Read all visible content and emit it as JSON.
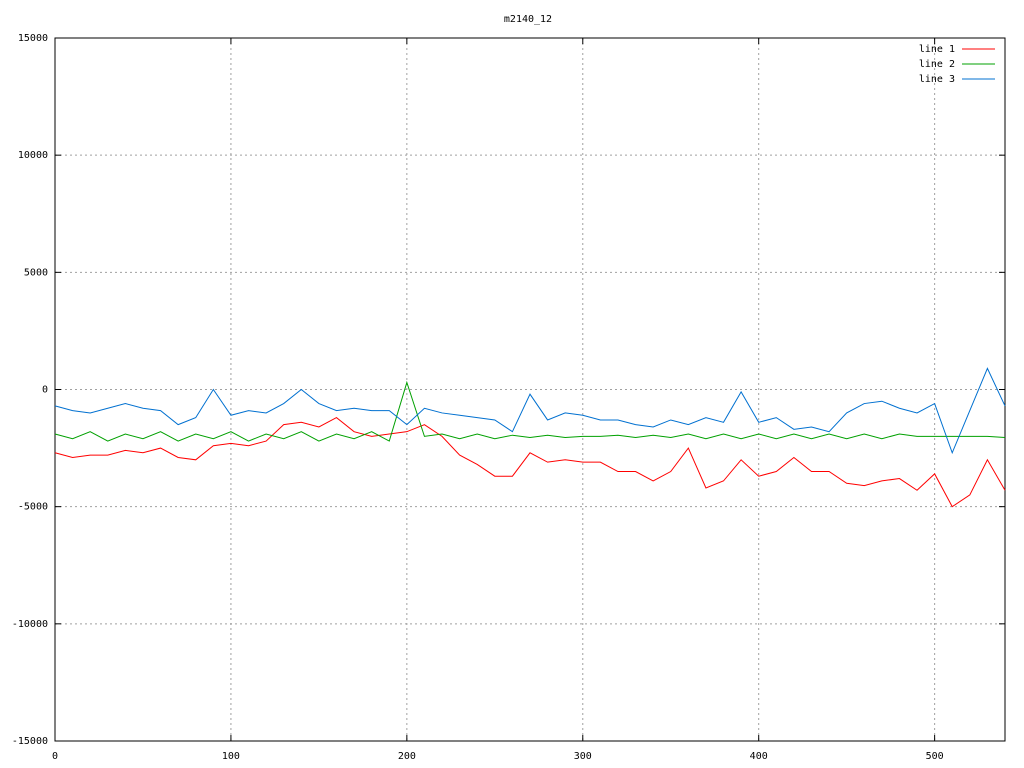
{
  "chart_data": {
    "type": "line",
    "title": "m2140_12",
    "x": [
      0,
      10,
      20,
      30,
      40,
      50,
      60,
      70,
      80,
      90,
      100,
      110,
      120,
      130,
      140,
      150,
      160,
      170,
      180,
      190,
      200,
      210,
      220,
      230,
      240,
      250,
      260,
      270,
      280,
      290,
      300,
      310,
      320,
      330,
      340,
      350,
      360,
      370,
      380,
      390,
      400,
      410,
      420,
      430,
      440,
      450,
      460,
      470,
      480,
      490,
      500,
      510,
      520,
      530,
      540
    ],
    "series": [
      {
        "name": "line 1",
        "color": "#ff0000",
        "values": [
          -2700,
          -2900,
          -2800,
          -2800,
          -2600,
          -2700,
          -2500,
          -2900,
          -3000,
          -2400,
          -2300,
          -2400,
          -2200,
          -1500,
          -1400,
          -1600,
          -1200,
          -1800,
          -2000,
          -1900,
          -1800,
          -1500,
          -2000,
          -2800,
          -3200,
          -3700,
          -3700,
          -2700,
          -3100,
          -3000,
          -3100,
          -3100,
          -3500,
          -3500,
          -3900,
          -3500,
          -2500,
          -4200,
          -3900,
          -3000,
          -3700,
          -3500,
          -2900,
          -3500,
          -3500,
          -4000,
          -4100,
          -3900,
          -3800,
          -4300,
          -3600,
          -5000,
          -4500,
          -3000,
          -4300
        ]
      },
      {
        "name": "line 2",
        "color": "#00a000",
        "values": [
          -1900,
          -2100,
          -1800,
          -2200,
          -1900,
          -2100,
          -1800,
          -2200,
          -1900,
          -2100,
          -1800,
          -2200,
          -1900,
          -2100,
          -1800,
          -2200,
          -1900,
          -2100,
          -1800,
          -2200,
          300,
          -2000,
          -1900,
          -2100,
          -1900,
          -2100,
          -1950,
          -2050,
          -1950,
          -2050,
          -2000,
          -2000,
          -1950,
          -2050,
          -1950,
          -2050,
          -1900,
          -2100,
          -1900,
          -2100,
          -1900,
          -2100,
          -1900,
          -2100,
          -1900,
          -2100,
          -1900,
          -2100,
          -1900,
          -2000,
          -2000,
          -2000,
          -2000,
          -2000,
          -2050
        ]
      },
      {
        "name": "line 3",
        "color": "#0070d0",
        "values": [
          -700,
          -900,
          -1000,
          -800,
          -600,
          -800,
          -900,
          -1500,
          -1200,
          0,
          -1100,
          -900,
          -1000,
          -600,
          0,
          -600,
          -900,
          -800,
          -900,
          -900,
          -1500,
          -800,
          -1000,
          -1100,
          -1200,
          -1300,
          -1800,
          -200,
          -1300,
          -1000,
          -1100,
          -1300,
          -1300,
          -1500,
          -1600,
          -1300,
          -1500,
          -1200,
          -1400,
          -100,
          -1400,
          -1200,
          -1700,
          -1600,
          -1800,
          -1000,
          -600,
          -500,
          -800,
          -1000,
          -600,
          -2700,
          -900,
          900,
          -700
        ]
      }
    ],
    "xlim": [
      0,
      540
    ],
    "ylim": [
      -15000,
      15000
    ],
    "xticks": [
      0,
      100,
      200,
      300,
      400,
      500
    ],
    "yticks": [
      -15000,
      -10000,
      -5000,
      0,
      5000,
      10000,
      15000
    ],
    "grid": true,
    "legend": "top-right"
  }
}
